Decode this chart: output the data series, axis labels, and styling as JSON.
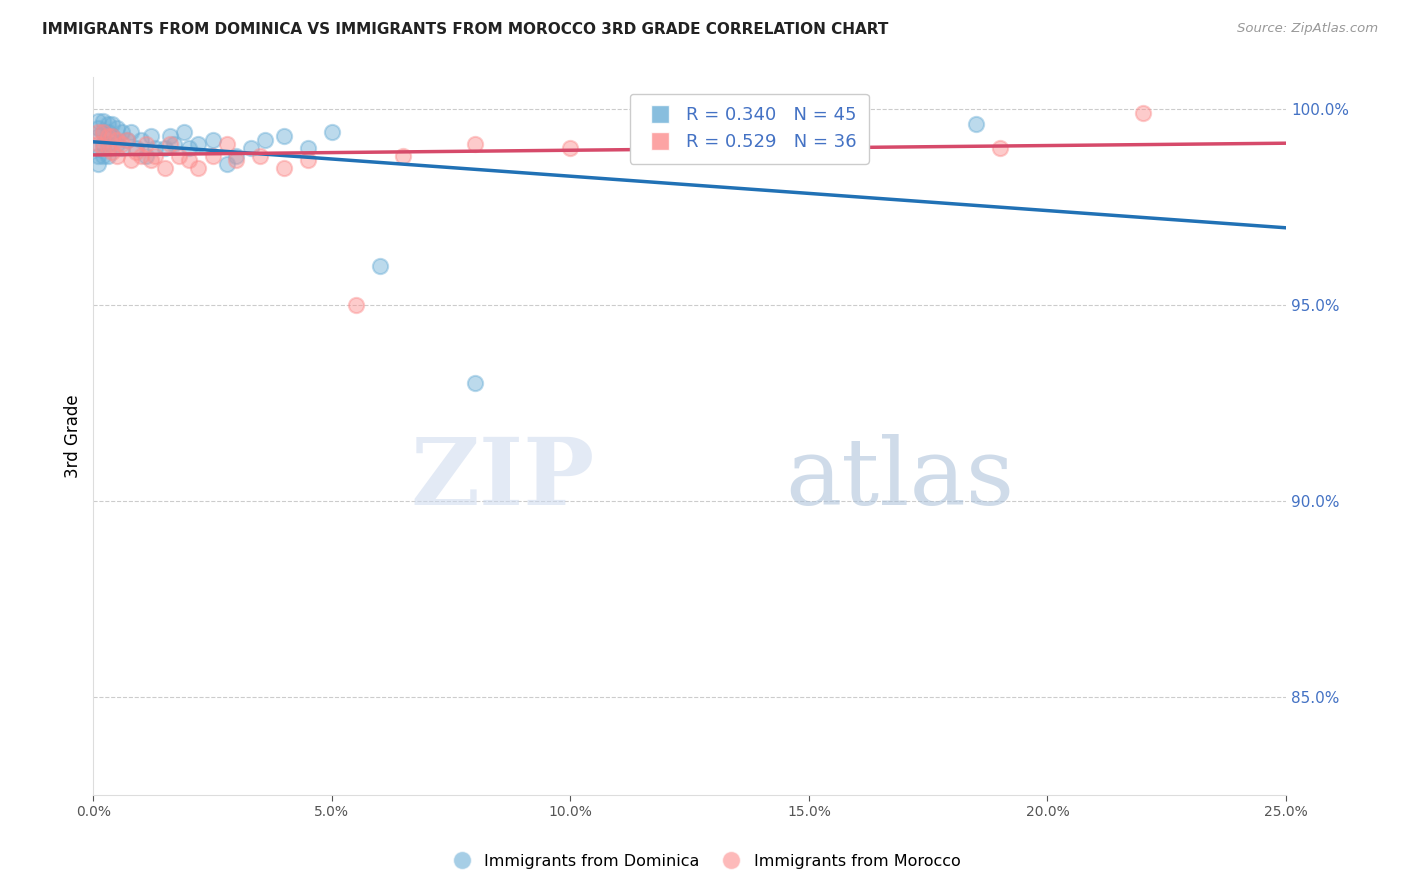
{
  "title": "IMMIGRANTS FROM DOMINICA VS IMMIGRANTS FROM MOROCCO 3RD GRADE CORRELATION CHART",
  "source": "Source: ZipAtlas.com",
  "ylabel_left": "3rd Grade",
  "xlim": [
    0.0,
    0.25
  ],
  "ylim": [
    0.825,
    1.008
  ],
  "right_yticks": [
    1.0,
    0.95,
    0.9,
    0.85
  ],
  "hgrid_values": [
    1.0,
    0.95,
    0.9,
    0.85
  ],
  "dominica_color": "#6baed6",
  "morocco_color": "#fc8d8d",
  "dominica_line_color": "#2171b5",
  "morocco_line_color": "#d64a6a",
  "dominica_R": 0.34,
  "dominica_N": 45,
  "morocco_R": 0.529,
  "morocco_N": 36,
  "legend_label_dominica": "Immigrants from Dominica",
  "legend_label_morocco": "Immigrants from Morocco",
  "dominica_x": [
    0.001,
    0.001,
    0.001,
    0.001,
    0.001,
    0.001,
    0.002,
    0.002,
    0.002,
    0.002,
    0.003,
    0.003,
    0.003,
    0.003,
    0.004,
    0.004,
    0.005,
    0.005,
    0.006,
    0.006,
    0.007,
    0.008,
    0.009,
    0.01,
    0.011,
    0.012,
    0.013,
    0.015,
    0.016,
    0.017,
    0.019,
    0.02,
    0.022,
    0.025,
    0.028,
    0.03,
    0.033,
    0.036,
    0.04,
    0.045,
    0.05,
    0.06,
    0.08,
    0.12,
    0.185
  ],
  "dominica_y": [
    0.997,
    0.995,
    0.993,
    0.99,
    0.988,
    0.986,
    0.997,
    0.994,
    0.991,
    0.988,
    0.996,
    0.994,
    0.991,
    0.988,
    0.996,
    0.993,
    0.995,
    0.991,
    0.994,
    0.99,
    0.992,
    0.994,
    0.99,
    0.992,
    0.988,
    0.993,
    0.99,
    0.99,
    0.993,
    0.991,
    0.994,
    0.99,
    0.991,
    0.992,
    0.986,
    0.988,
    0.99,
    0.992,
    0.993,
    0.99,
    0.994,
    0.96,
    0.93,
    0.99,
    0.996
  ],
  "morocco_x": [
    0.001,
    0.001,
    0.002,
    0.002,
    0.003,
    0.003,
    0.004,
    0.004,
    0.005,
    0.005,
    0.006,
    0.007,
    0.008,
    0.009,
    0.01,
    0.011,
    0.012,
    0.013,
    0.015,
    0.016,
    0.018,
    0.02,
    0.022,
    0.025,
    0.028,
    0.03,
    0.035,
    0.04,
    0.045,
    0.055,
    0.065,
    0.08,
    0.1,
    0.13,
    0.19,
    0.22
  ],
  "morocco_y": [
    0.994,
    0.991,
    0.994,
    0.99,
    0.993,
    0.99,
    0.993,
    0.989,
    0.992,
    0.988,
    0.991,
    0.992,
    0.987,
    0.989,
    0.988,
    0.991,
    0.987,
    0.988,
    0.985,
    0.991,
    0.988,
    0.987,
    0.985,
    0.988,
    0.991,
    0.987,
    0.988,
    0.985,
    0.987,
    0.95,
    0.988,
    0.991,
    0.99,
    0.994,
    0.99,
    0.999
  ],
  "watermark_zip": "ZIP",
  "watermark_atlas": "atlas",
  "background_color": "#ffffff"
}
